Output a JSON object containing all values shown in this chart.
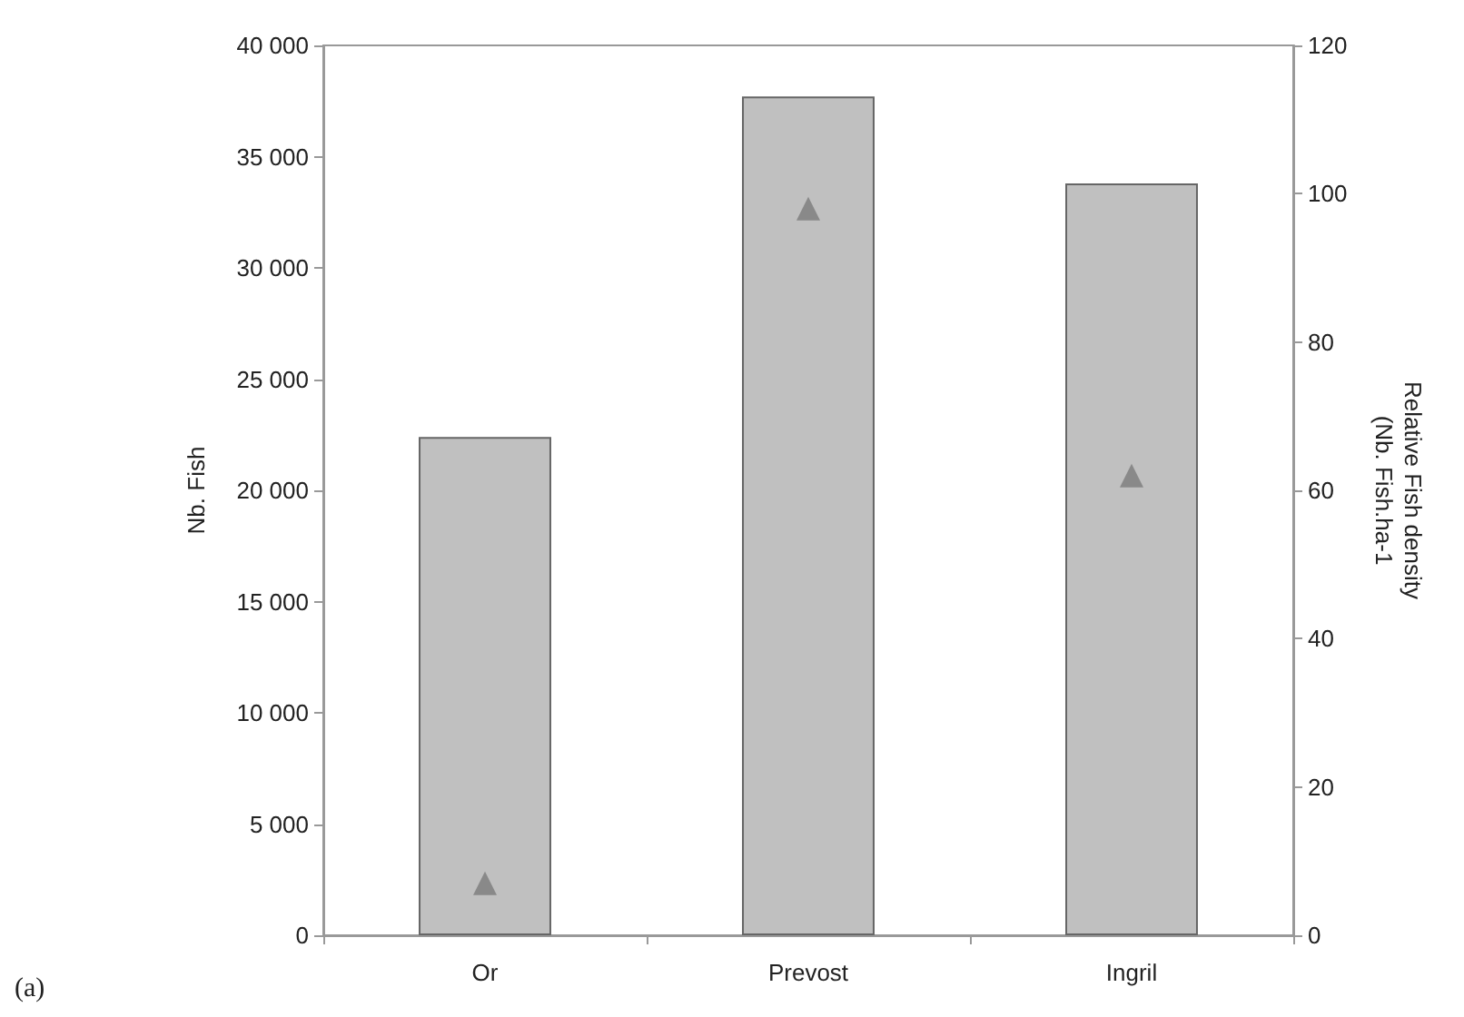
{
  "chart_data": {
    "type": "bar",
    "ylabel": "Nb. Fish",
    "y2label": "Relative Fish density\n(Nb. Fish.ha-1",
    "categories": [
      "Or",
      "Prevost",
      "Ingril"
    ],
    "series": [
      {
        "color": "#c0c0c0",
        "values": [
          22400,
          37700,
          33800
        ]
      },
      {
        "type": "scatter",
        "axis": "y2",
        "marker": "triangle",
        "color": "#7a7a7a",
        "values": [
          7,
          98,
          62
        ]
      }
    ],
    "ylim": [
      0,
      40000
    ],
    "yticks": [
      0,
      {
        "value": 5000,
        "label": "5 000"
      },
      {
        "value": 10000,
        "label": "10 000"
      },
      {
        "value": 15000,
        "label": "15 000"
      },
      {
        "value": 20000,
        "label": "20 000"
      },
      {
        "value": 25000,
        "label": "25 000"
      },
      {
        "value": 30000,
        "label": "30 000"
      },
      {
        "value": 35000,
        "label": "35 000"
      },
      {
        "value": 40000,
        "label": "40 000"
      }
    ],
    "y2lim": [
      0,
      120
    ],
    "y2ticks": [
      0,
      20,
      40,
      60,
      80,
      100,
      120
    ],
    "grid": false,
    "annotations": [
      "(a)"
    ]
  }
}
